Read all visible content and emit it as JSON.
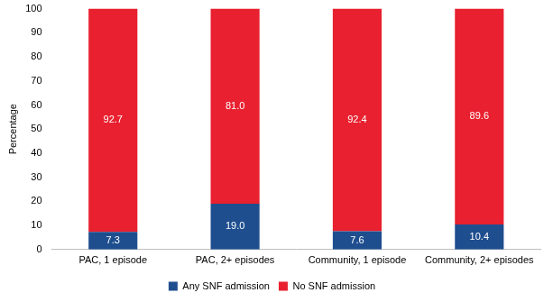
{
  "chart_data": {
    "type": "bar",
    "stacked": true,
    "y_label": "Percentage",
    "categories": [
      "PAC, 1 episode",
      "PAC, 2+ episodes",
      "Community, 1 episode",
      "Community, 2+ episodes"
    ],
    "series": [
      {
        "name": "Any SNF admission",
        "color": "#1f4e8f",
        "values": [
          7.3,
          19.0,
          7.6,
          10.4
        ],
        "value_labels": [
          "7.3",
          "19.0",
          "7.6",
          "10.4"
        ]
      },
      {
        "name": "No SNF admission",
        "color": "#e8202f",
        "values": [
          92.7,
          81.0,
          92.4,
          89.6
        ],
        "value_labels": [
          "92.7",
          "81.0",
          "92.4",
          "89.6"
        ]
      }
    ],
    "ylim": [
      0,
      100
    ],
    "yticks": [
      0,
      10,
      20,
      30,
      40,
      50,
      60,
      70,
      80,
      90,
      100
    ],
    "grid": false,
    "legend": "bottom",
    "data_labels": true
  }
}
